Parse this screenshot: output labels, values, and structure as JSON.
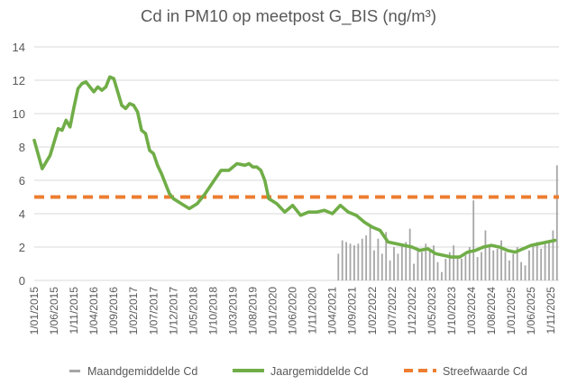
{
  "chart_data": {
    "type": "line",
    "title": "Cd in PM10 op meetpost G_BIS (ng/m³)",
    "xlabel": "",
    "ylabel": "",
    "ylim": [
      0,
      14
    ],
    "yticks": [
      0,
      2,
      4,
      6,
      8,
      10,
      12,
      14
    ],
    "grid": true,
    "legend_position": "bottom",
    "x_tick_labels": [
      "1/01/2015",
      "1/06/2015",
      "1/11/2015",
      "1/04/2016",
      "1/09/2016",
      "1/02/2017",
      "1/07/2017",
      "1/12/2017",
      "1/05/2018",
      "1/10/2018",
      "1/03/2019",
      "1/08/2019",
      "1/01/2020",
      "1/06/2020",
      "1/11/2020",
      "1/04/2021",
      "1/09/2021",
      "1/02/2022",
      "1/07/2022",
      "1/12/2022",
      "1/05/2023",
      "1/10/2023",
      "1/03/2024",
      "1/08/2024",
      "1/01/2025",
      "1/06/2025",
      "1/11/2025"
    ],
    "x_range": [
      "2015-01",
      "2025-12"
    ],
    "series": [
      {
        "name": "Maandgemiddelde Cd",
        "style": "bar",
        "color": "#a6a6a6",
        "x": [
          "2021-05",
          "2021-06",
          "2021-07",
          "2021-08",
          "2021-09",
          "2021-10",
          "2021-11",
          "2021-12",
          "2022-01",
          "2022-02",
          "2022-03",
          "2022-04",
          "2022-05",
          "2022-06",
          "2022-07",
          "2022-08",
          "2022-09",
          "2022-10",
          "2022-11",
          "2022-12",
          "2023-01",
          "2023-02",
          "2023-03",
          "2023-04",
          "2023-05",
          "2023-06",
          "2023-07",
          "2023-08",
          "2023-09",
          "2023-10",
          "2023-11",
          "2023-12",
          "2024-01",
          "2024-02",
          "2024-03",
          "2024-04",
          "2024-05",
          "2024-06",
          "2024-07",
          "2024-08",
          "2024-09",
          "2024-10",
          "2024-11",
          "2024-12",
          "2025-01",
          "2025-02",
          "2025-03",
          "2025-04",
          "2025-05",
          "2025-06",
          "2025-07",
          "2025-08",
          "2025-09",
          "2025-10",
          "2025-11",
          "2025-12"
        ],
        "values": [
          1.6,
          2.4,
          2.3,
          2.2,
          2.1,
          2.2,
          2.5,
          2.7,
          3.2,
          1.8,
          2.5,
          1.6,
          2.9,
          1.2,
          2.0,
          1.6,
          2.1,
          2.3,
          3.1,
          1.0,
          1.9,
          1.7,
          2.2,
          1.9,
          2.1,
          1.1,
          0.5,
          1.3,
          1.7,
          2.1,
          1.4,
          1.3,
          1.5,
          2.0,
          4.8,
          1.4,
          1.7,
          3.0,
          2.0,
          1.8,
          1.9,
          2.4,
          1.7,
          1.2,
          1.6,
          2.0,
          1.1,
          0.9,
          1.8,
          2.2,
          2.3,
          1.9,
          2.2,
          2.4,
          3.0,
          6.9
        ]
      },
      {
        "name": "Jaargemiddelde Cd",
        "style": "line",
        "color": "#70ad47",
        "x": [
          "2015-01",
          "2015-03",
          "2015-05",
          "2015-07",
          "2015-08",
          "2015-09",
          "2015-10",
          "2015-11",
          "2015-12",
          "2016-01",
          "2016-02",
          "2016-03",
          "2016-04",
          "2016-05",
          "2016-06",
          "2016-07",
          "2016-08",
          "2016-09",
          "2016-10",
          "2016-11",
          "2016-12",
          "2017-01",
          "2017-02",
          "2017-03",
          "2017-04",
          "2017-05",
          "2017-06",
          "2017-07",
          "2017-08",
          "2017-09",
          "2017-10",
          "2017-11",
          "2017-12",
          "2018-02",
          "2018-04",
          "2018-06",
          "2018-08",
          "2018-10",
          "2018-12",
          "2019-02",
          "2019-04",
          "2019-06",
          "2019-07",
          "2019-08",
          "2019-09",
          "2019-10",
          "2019-11",
          "2019-12",
          "2020-02",
          "2020-04",
          "2020-06",
          "2020-08",
          "2020-10",
          "2020-12",
          "2021-02",
          "2021-04",
          "2021-06",
          "2021-08",
          "2021-10",
          "2021-12",
          "2022-02",
          "2022-04",
          "2022-06",
          "2022-08",
          "2022-10",
          "2022-12",
          "2023-02",
          "2023-04",
          "2023-06",
          "2023-08",
          "2023-10",
          "2023-12",
          "2024-02",
          "2024-04",
          "2024-06",
          "2024-08",
          "2024-10",
          "2024-12",
          "2025-02",
          "2025-04",
          "2025-06",
          "2025-08",
          "2025-10",
          "2025-12"
        ],
        "values": [
          8.4,
          6.7,
          7.5,
          9.1,
          9.0,
          9.6,
          9.2,
          10.4,
          11.5,
          11.8,
          11.9,
          11.6,
          11.3,
          11.6,
          11.4,
          11.6,
          12.2,
          12.1,
          11.3,
          10.5,
          10.3,
          10.6,
          10.5,
          10.1,
          9.0,
          8.8,
          7.8,
          7.6,
          6.9,
          6.4,
          5.8,
          5.2,
          4.9,
          4.6,
          4.3,
          4.6,
          5.2,
          5.9,
          6.6,
          6.6,
          7.0,
          6.9,
          7.0,
          6.8,
          6.8,
          6.6,
          6.0,
          4.9,
          4.6,
          4.1,
          4.5,
          3.9,
          4.1,
          4.1,
          4.2,
          4.0,
          4.5,
          4.1,
          3.9,
          3.5,
          3.2,
          3.0,
          2.3,
          2.2,
          2.1,
          2.0,
          1.8,
          1.9,
          1.6,
          1.5,
          1.4,
          1.4,
          1.7,
          1.8,
          2.0,
          2.1,
          2.0,
          1.8,
          1.7,
          1.9,
          2.1,
          2.2,
          2.3,
          2.4
        ]
      },
      {
        "name": "Streefwaarde Cd",
        "style": "dashed",
        "color": "#ed7d31",
        "constant": 5
      }
    ]
  }
}
